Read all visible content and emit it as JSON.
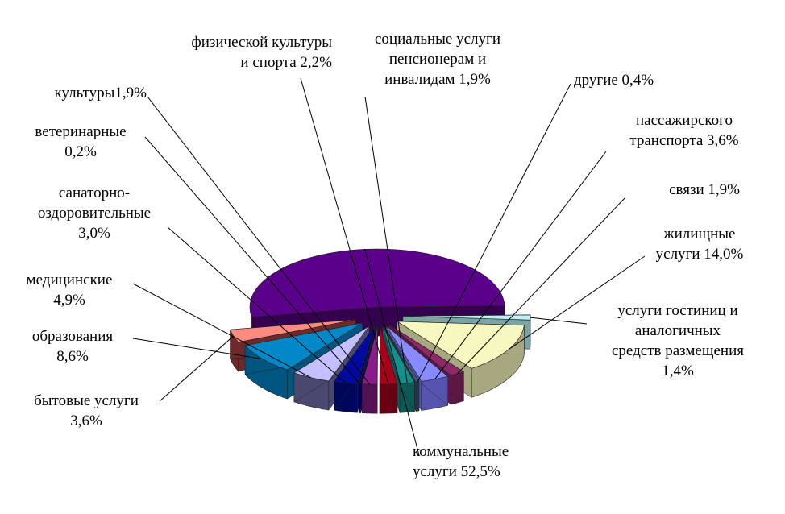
{
  "chart_data": {
    "type": "pie",
    "style": "3d-exploded",
    "legend": "none",
    "slices": [
      {
        "key": "kommunalnye",
        "lines": [
          "коммунальные",
          "услуги 52,5%"
        ],
        "value": 52.5,
        "color": "#5a008a",
        "side": "#34004f"
      },
      {
        "key": "gostinits",
        "lines": [
          "услуги гостиниц и",
          "аналогичных",
          "средств размещения",
          "1,4%"
        ],
        "value": 1.4,
        "color": "#bff0f2",
        "side": "#7aa4a6"
      },
      {
        "key": "zhilishchnye",
        "lines": [
          "жилищные",
          "услуги 14,0%"
        ],
        "value": 14.0,
        "color": "#f7f7c0",
        "side": "#a8a880"
      },
      {
        "key": "svyazi",
        "lines": [
          "связи 1,9%"
        ],
        "value": 1.9,
        "color": "#8f2768",
        "side": "#5c1842"
      },
      {
        "key": "passazhirsk",
        "lines": [
          "пассажирского",
          "транспорта 3,6%"
        ],
        "value": 3.6,
        "color": "#8a8aff",
        "side": "#5555b0"
      },
      {
        "key": "drugie",
        "lines": [
          "другие 0,4%"
        ],
        "value": 0.4,
        "color": "#3e5f7a",
        "side": "#243a4c"
      },
      {
        "key": "sotsialnye",
        "lines": [
          "социальные услуги",
          "пенсионерам и",
          "инвалидам 1,9%"
        ],
        "value": 1.9,
        "color": "#138f8c",
        "side": "#0b5a58"
      },
      {
        "key": "fizkultura",
        "lines": [
          "физической культуры",
          "и спорта 2,2%"
        ],
        "value": 2.2,
        "color": "#a8001a",
        "side": "#6a0010"
      },
      {
        "key": "kultura",
        "lines": [
          "культуры1,9%"
        ],
        "value": 1.9,
        "color": "#8b1a8a",
        "side": "#561056"
      },
      {
        "key": "veterinarnye",
        "lines": [
          "ветеринарные",
          "0,2%"
        ],
        "value": 0.2,
        "color": "#000080",
        "side": "#00004a"
      },
      {
        "key": "sanatorno",
        "lines": [
          "санаторно-",
          "оздоровительные",
          "3,0%"
        ],
        "value": 3.0,
        "color": "#000aa0",
        "side": "#00065c"
      },
      {
        "key": "meditsinskie",
        "lines": [
          "медицинские",
          "4,9%"
        ],
        "value": 4.9,
        "color": "#c4c0ff",
        "side": "#4a4870"
      },
      {
        "key": "obrazovaniya",
        "lines": [
          "образования",
          "8,6%"
        ],
        "value": 8.6,
        "color": "#0088c8",
        "side": "#005680"
      },
      {
        "key": "bytovye",
        "lines": [
          "бытовые услуги",
          "3,6%"
        ],
        "value": 3.6,
        "color": "#ff8a80",
        "side": "#6e2a2a"
      }
    ],
    "palette": {
      "leader_line": "#000000"
    }
  }
}
